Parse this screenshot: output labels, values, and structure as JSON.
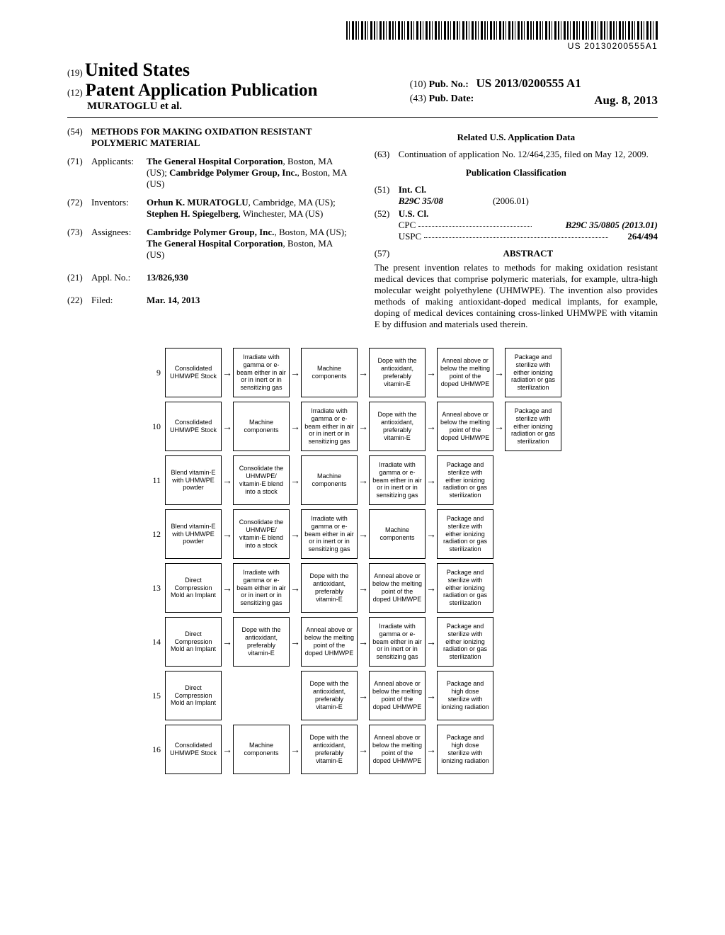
{
  "barcode_text": "US 20130200555A1",
  "masthead": {
    "country_code": "(19)",
    "country": "United States",
    "pub_type_code": "(12)",
    "pub_type": "Patent Application Publication",
    "authors": "MURATOGLU et al.",
    "pubno_code": "(10)",
    "pubno_label": "Pub. No.:",
    "pubno": "US 2013/0200555 A1",
    "pubdate_code": "(43)",
    "pubdate_label": "Pub. Date:",
    "pubdate": "Aug. 8, 2013"
  },
  "left": {
    "title_code": "(54)",
    "title": "METHODS FOR MAKING OXIDATION RESISTANT POLYMERIC MATERIAL",
    "applicants_code": "(71)",
    "applicants_label": "Applicants:",
    "applicants": "The General Hospital Corporation, Boston, MA (US); Cambridge Polymer Group, Inc., Boston, MA (US)",
    "inventors_code": "(72)",
    "inventors_label": "Inventors:",
    "inventors": "Orhun K. MURATOGLU, Cambridge, MA (US); Stephen H. Spiegelberg, Winchester, MA (US)",
    "assignees_code": "(73)",
    "assignees_label": "Assignees:",
    "assignees": "Cambridge Polymer Group, Inc., Boston, MA (US); The General Hospital Corporation, Boston, MA (US)",
    "applno_code": "(21)",
    "applno_label": "Appl. No.:",
    "applno": "13/826,930",
    "filed_code": "(22)",
    "filed_label": "Filed:",
    "filed": "Mar. 14, 2013"
  },
  "right": {
    "related_heading": "Related U.S. Application Data",
    "cont_code": "(63)",
    "cont": "Continuation of application No. 12/464,235, filed on May 12, 2009.",
    "class_heading": "Publication Classification",
    "intcl_code": "(51)",
    "intcl_label": "Int. Cl.",
    "intcl_sym": "B29C 35/08",
    "intcl_date": "(2006.01)",
    "uscl_code": "(52)",
    "uscl_label": "U.S. Cl.",
    "cpc_label": "CPC",
    "cpc_val": "B29C 35/0805 (2013.01)",
    "uspc_label": "USPC",
    "uspc_val": "264/494",
    "abstract_code": "(57)",
    "abstract_heading": "ABSTRACT",
    "abstract": "The present invention relates to methods for making oxidation resistant medical devices that comprise polymeric materials, for example, ultra-high molecular weight polyethylene (UHMWPE). The invention also provides methods of making antioxidant-doped medical implants, for example, doping of medical devices containing cross-linked UHMWPE with vitamin E by diffusion and materials used therein."
  },
  "flow": {
    "box_consolidated": "Consolidated UHMWPE Stock",
    "box_irradiate": "Irradiate with gamma or e-beam either in air or in inert or in sensitizing gas",
    "box_machine": "Machine components",
    "box_dope": "Dope with the antioxidant, preferably vitamin-E",
    "box_anneal": "Anneal above or below the melting point of the doped UHMWPE",
    "box_package_ion": "Package and sterilize with either ionizing radiation or gas sterilization",
    "box_blend": "Blend vitamin-E with UHMWPE powder",
    "box_consolidate_blend": "Consolidate the UHMWPE/ vitamin-E blend into a stock",
    "box_direct": "Direct Compression Mold an Implant",
    "box_package_high": "Package and high dose sterilize with ionizing radiation",
    "rows": [
      {
        "num": "9",
        "cells": [
          "consolidated",
          "irradiate",
          "machine",
          "dope",
          "anneal",
          "package_ion"
        ]
      },
      {
        "num": "10",
        "cells": [
          "consolidated",
          "machine",
          "irradiate",
          "dope",
          "anneal",
          "package_ion"
        ]
      },
      {
        "num": "11",
        "cells": [
          "blend",
          "consolidate_blend",
          "machine",
          "irradiate",
          "package_ion",
          null
        ]
      },
      {
        "num": "12",
        "cells": [
          "blend",
          "consolidate_blend",
          "irradiate",
          "machine",
          "package_ion",
          null
        ]
      },
      {
        "num": "13",
        "cells": [
          "direct",
          "irradiate",
          "dope",
          "anneal",
          "package_ion",
          null
        ]
      },
      {
        "num": "14",
        "cells": [
          "direct",
          "dope",
          "anneal",
          "irradiate",
          "package_ion",
          null
        ]
      },
      {
        "num": "15",
        "cells": [
          "direct",
          null,
          "dope",
          "anneal",
          "package_high",
          null
        ]
      },
      {
        "num": "16",
        "cells": [
          "consolidated",
          "machine",
          "dope",
          "anneal",
          "package_high",
          null
        ]
      }
    ]
  }
}
